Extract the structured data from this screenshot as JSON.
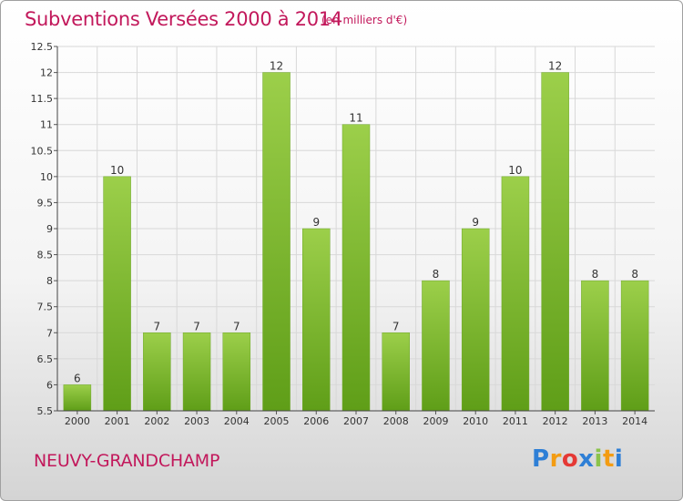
{
  "header": {
    "title": "Subventions Versées 2000 à 2014",
    "unit_note": "(en milliers d'€)"
  },
  "footer": {
    "commune": "NEUVY-GRANDCHAMP",
    "logo_text": "Proxiti",
    "logo_colors": [
      "#2e7fd6",
      "#f39c12",
      "#e53935",
      "#2e7fd6",
      "#8bc34a",
      "#f39c12",
      "#2e7fd6"
    ]
  },
  "chart_data": {
    "type": "bar",
    "categories": [
      "2000",
      "2001",
      "2002",
      "2003",
      "2004",
      "2005",
      "2006",
      "2007",
      "2008",
      "2009",
      "2010",
      "2011",
      "2012",
      "2013",
      "2014"
    ],
    "values": [
      6,
      10,
      7,
      7,
      7,
      12,
      9,
      11,
      7,
      8,
      9,
      10,
      12,
      8,
      8
    ],
    "data_labels": [
      "6",
      "10",
      "7",
      "7",
      "7",
      "12",
      "9",
      "11",
      "7",
      "8",
      "9",
      "10",
      "12",
      "8",
      "8"
    ],
    "title": "Subventions Versées 2000 à 2014",
    "xlabel": "",
    "ylabel": "",
    "ylim": [
      5.5,
      12.5
    ],
    "yticks": [
      5.5,
      6,
      6.5,
      7,
      7.5,
      8,
      8.5,
      9,
      9.5,
      10,
      10.5,
      11,
      11.5,
      12,
      12.5
    ],
    "ytick_labels": [
      "5.5",
      "6",
      "6.5",
      "7",
      "7.5",
      "8",
      "8.5",
      "9",
      "9.5",
      "10",
      "10.5",
      "11",
      "11.5",
      "12",
      "12.5"
    ],
    "grid": true,
    "bar_color_top": "#9ccf4a",
    "bar_color_bottom": "#5f9e18",
    "grid_color": "#d8d8d8"
  }
}
